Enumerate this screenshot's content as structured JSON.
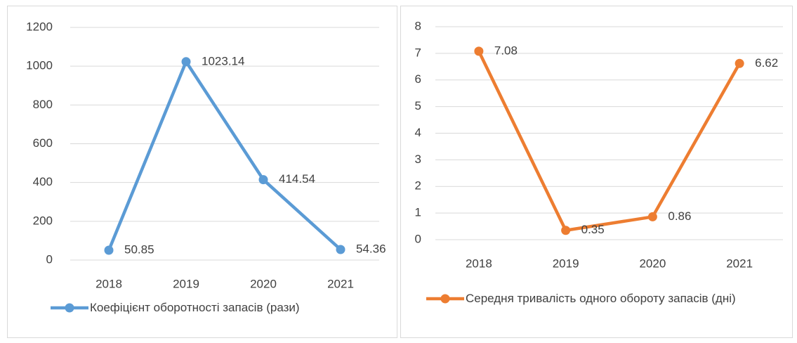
{
  "chart_data": [
    {
      "type": "line",
      "categories": [
        "2018",
        "2019",
        "2020",
        "2021"
      ],
      "series": [
        {
          "name": "Коефіцієнт оборотності запасів (рази)",
          "color": "#5b9bd5",
          "values": [
            50.85,
            1023.14,
            414.54,
            54.36
          ]
        }
      ],
      "ylim": [
        0,
        1200
      ],
      "yticks": [
        0,
        200,
        400,
        600,
        800,
        1000,
        1200
      ],
      "grid": true
    },
    {
      "type": "line",
      "categories": [
        "2018",
        "2019",
        "2020",
        "2021"
      ],
      "series": [
        {
          "name": "Середня тривалість одного обороту запасів (дні)",
          "color": "#ed7d31",
          "values": [
            7.08,
            0.35,
            0.86,
            6.62
          ]
        }
      ],
      "ylim": [
        0,
        8
      ],
      "yticks": [
        0,
        1,
        2,
        3,
        4,
        5,
        6,
        7,
        8
      ],
      "grid": true
    }
  ]
}
